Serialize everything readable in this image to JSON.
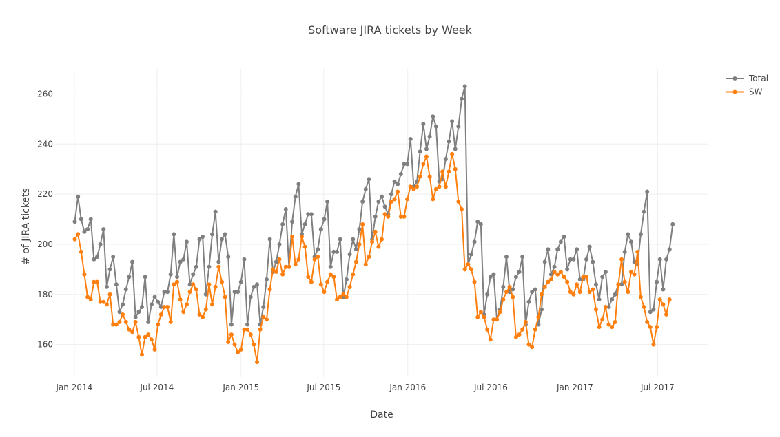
{
  "chart_data": {
    "type": "line",
    "title": "Software JIRA tickets by Week",
    "xlabel": "Date",
    "ylabel": "# of JIRA tickets",
    "x_ticks": [
      {
        "label": "Jan 2014",
        "date": "2014-01-01"
      },
      {
        "label": "Jul 2014",
        "date": "2014-07-01"
      },
      {
        "label": "Jan 2015",
        "date": "2015-01-01"
      },
      {
        "label": "Jul 2015",
        "date": "2015-07-01"
      },
      {
        "label": "Jan 2016",
        "date": "2016-01-01"
      },
      {
        "label": "Jul 2016",
        "date": "2016-07-01"
      },
      {
        "label": "Jan 2017",
        "date": "2017-01-01"
      },
      {
        "label": "Jul 2017",
        "date": "2017-07-01"
      }
    ],
    "y_ticks": [
      160,
      180,
      200,
      220,
      240,
      260
    ],
    "ylim": [
      147,
      270
    ],
    "xlim": [
      "2013-11-20",
      "2017-10-20"
    ],
    "grid": true,
    "legend_position": "top-right",
    "x_start": "2014-01-02",
    "x_step_days": 7,
    "series": [
      {
        "name": "Total",
        "color": "#7f7f7f",
        "values": [
          209,
          219,
          210,
          205,
          206,
          210,
          194,
          195,
          200,
          206,
          183,
          190,
          195,
          184,
          173,
          176,
          182,
          187,
          193,
          171,
          173,
          175,
          187,
          169,
          176,
          179,
          177,
          175,
          181,
          181,
          188,
          204,
          187,
          193,
          194,
          201,
          184,
          188,
          191,
          202,
          203,
          180,
          191,
          204,
          213,
          193,
          202,
          204,
          195,
          168,
          181,
          181,
          185,
          194,
          168,
          179,
          183,
          184,
          168,
          175,
          186,
          202,
          189,
          193,
          200,
          208,
          214,
          191,
          209,
          219,
          224,
          204,
          208,
          212,
          212,
          195,
          198,
          206,
          210,
          217,
          191,
          197,
          197,
          202,
          179,
          186,
          196,
          202,
          198,
          206,
          217,
          222,
          226,
          202,
          211,
          217,
          219,
          215,
          212,
          220,
          225,
          224,
          228,
          232,
          232,
          242,
          223,
          225,
          237,
          248,
          238,
          243,
          251,
          247,
          225,
          226,
          234,
          241,
          249,
          238,
          247,
          258,
          263,
          192,
          196,
          201,
          209,
          208,
          172,
          180,
          187,
          188,
          170,
          174,
          183,
          195,
          181,
          182,
          187,
          189,
          195,
          168,
          177,
          181,
          182,
          168,
          174,
          193,
          198,
          188,
          191,
          198,
          201,
          203,
          190,
          194,
          194,
          198,
          186,
          186,
          194,
          199,
          193,
          184,
          178,
          187,
          189,
          175,
          178,
          180,
          184,
          184,
          197,
          204,
          201,
          193,
          192,
          204,
          213,
          221,
          173,
          174,
          185,
          194,
          182,
          194,
          198,
          208
        ]
      },
      {
        "name": "SW",
        "color": "#ff7f0e",
        "values": [
          202,
          204,
          197,
          188,
          179,
          178,
          185,
          185,
          177,
          177,
          176,
          180,
          168,
          168,
          169,
          172,
          169,
          166,
          165,
          169,
          163,
          156,
          163,
          164,
          162,
          158,
          168,
          172,
          175,
          175,
          169,
          184,
          185,
          178,
          173,
          176,
          181,
          184,
          182,
          172,
          171,
          174,
          184,
          176,
          183,
          191,
          185,
          179,
          161,
          164,
          160,
          157,
          158,
          166,
          166,
          164,
          160,
          153,
          166,
          171,
          170,
          182,
          190,
          189,
          194,
          188,
          191,
          191,
          203,
          192,
          194,
          203,
          199,
          187,
          185,
          194,
          195,
          184,
          181,
          185,
          188,
          187,
          178,
          179,
          180,
          179,
          183,
          188,
          193,
          200,
          208,
          192,
          195,
          201,
          205,
          199,
          202,
          212,
          211,
          217,
          218,
          221,
          211,
          211,
          218,
          223,
          222,
          223,
          227,
          232,
          235,
          227,
          218,
          222,
          223,
          229,
          223,
          229,
          236,
          230,
          217,
          214,
          190,
          192,
          190,
          185,
          171,
          173,
          171,
          166,
          162,
          170,
          170,
          173,
          178,
          181,
          183,
          179,
          163,
          164,
          166,
          169,
          160,
          159,
          166,
          171,
          180,
          183,
          185,
          186,
          189,
          188,
          189,
          187,
          185,
          181,
          180,
          184,
          181,
          187,
          187,
          181,
          182,
          174,
          167,
          170,
          175,
          168,
          167,
          169,
          184,
          194,
          185,
          181,
          189,
          188,
          197,
          179,
          175,
          169,
          167,
          160,
          167,
          178,
          176,
          172,
          178
        ]
      }
    ]
  }
}
